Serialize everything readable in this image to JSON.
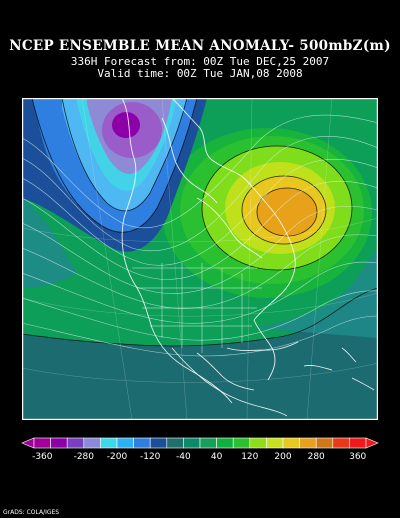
{
  "header": {
    "title": "NCEP ENSEMBLE MEAN ANOMALY- 500mbZ(m)",
    "forecast_line": "336H Forecast from: 00Z Tue DEC,25 2007",
    "valid_line": "Valid time: 00Z Tue JAN,08 2008"
  },
  "map": {
    "region": "North America",
    "colors": {
      "deep_purple": "#8c00a8",
      "purple": "#9a5cc8",
      "lavender": "#8f8ad6",
      "blue": "#3b7fe0",
      "light_blue": "#4fb7f2",
      "teal": "#1f8a8a",
      "dark_teal": "#1b6b70",
      "green": "#0d9e58",
      "bright_green": "#18b33c",
      "lime": "#7fdd1c",
      "yellow_green": "#bfe01a",
      "orange": "#e8a21a"
    }
  },
  "colorbar": {
    "labels": [
      "-360",
      "-280",
      "-200",
      "-120",
      "-40",
      "40",
      "120",
      "200",
      "280",
      "360"
    ],
    "colors": [
      "#a0009a",
      "#8c00a8",
      "#7a3fc0",
      "#8a8ad8",
      "#3fd8e8",
      "#2fb0f0",
      "#2f7fe0",
      "#1b4f9a",
      "#1f6f6a",
      "#0d8a6a",
      "#16a05a",
      "#10b040",
      "#2ac030",
      "#8fdc1a",
      "#c8e020",
      "#e8c820",
      "#e8a020",
      "#d07818",
      "#e83a1a",
      "#f01a1a"
    ]
  },
  "credit": "GrADS: COLA/IGES"
}
